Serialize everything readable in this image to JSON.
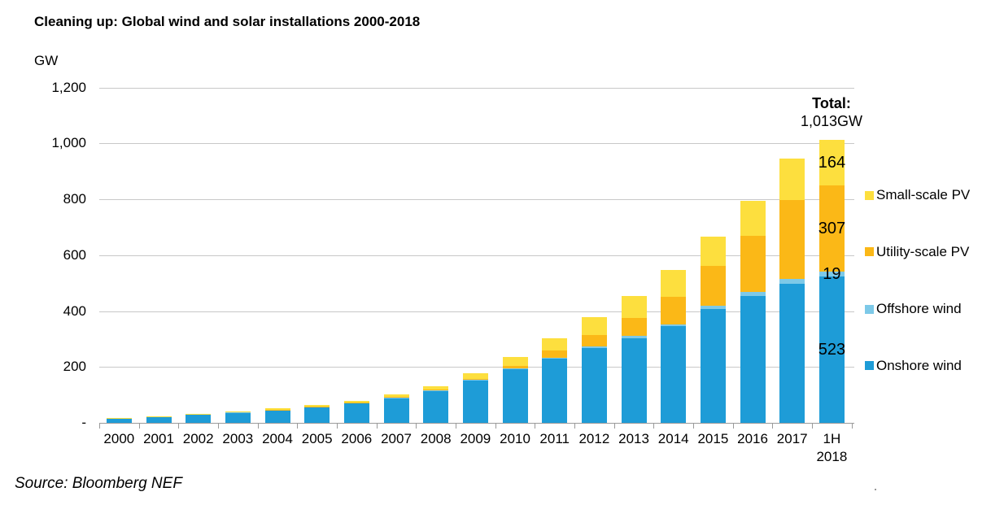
{
  "title": "Cleaning up: Global wind and solar installations 2000-2018",
  "y_axis_title": "GW",
  "source": "Source: Bloomberg NEF",
  "total_annotation": {
    "label": "Total:",
    "value": "1,013GW"
  },
  "legend": [
    {
      "label": "Small-scale PV",
      "color": "#FDDF3E"
    },
    {
      "label": "Utility-scale PV",
      "color": "#FBB817"
    },
    {
      "label": "Offshore wind",
      "color": "#7DC9E8"
    },
    {
      "label": "Onshore wind",
      "color": "#1E9CD7"
    }
  ],
  "colors": {
    "onshore_wind": "#1E9CD7",
    "offshore_wind": "#7DC9E8",
    "utility_scale_pv": "#FBB817",
    "small_scale_pv": "#FDDF3E",
    "gridline": "#c8c8c8",
    "axis": "#9a9a9a"
  },
  "chart_data": {
    "type": "bar",
    "stacked": true,
    "title": "Cleaning up: Global wind and solar installations 2000-2018",
    "ylabel": "GW",
    "ylim": [
      0,
      1200
    ],
    "grid": true,
    "legend_position": "right",
    "categories": [
      "2000",
      "2001",
      "2002",
      "2003",
      "2004",
      "2005",
      "2006",
      "2007",
      "2008",
      "2009",
      "2010",
      "2011",
      "2012",
      "2013",
      "2014",
      "2015",
      "2016",
      "2017",
      "1H\n2018"
    ],
    "yticks": [
      {
        "value": 1200,
        "label": "1,200"
      },
      {
        "value": 1000,
        "label": "1,000"
      },
      {
        "value": 800,
        "label": "800"
      },
      {
        "value": 600,
        "label": "600"
      },
      {
        "value": 400,
        "label": "400"
      },
      {
        "value": 200,
        "label": "200"
      },
      {
        "value": 0,
        "label": "-"
      }
    ],
    "series": [
      {
        "name": "Onshore wind",
        "color": "#1E9CD7",
        "values": [
          16,
          23,
          30,
          38,
          46,
          57,
          72,
          90,
          114,
          151,
          191,
          229,
          268,
          304,
          345,
          407,
          453,
          497,
          523
        ]
      },
      {
        "name": "Offshore wind",
        "color": "#7DC9E8",
        "values": [
          0,
          0,
          0,
          1,
          1,
          1,
          1,
          1,
          1,
          2,
          3,
          4,
          5,
          7,
          8,
          12,
          14,
          18,
          19
        ]
      },
      {
        "name": "Utility-scale PV",
        "color": "#FBB817",
        "values": [
          0,
          0,
          0,
          0,
          1,
          1,
          1,
          2,
          3,
          5,
          10,
          25,
          42,
          63,
          97,
          143,
          203,
          283,
          307
        ]
      },
      {
        "name": "Small-scale PV",
        "color": "#FDDF3E",
        "values": [
          1,
          1,
          2,
          2,
          3,
          4,
          5,
          8,
          13,
          19,
          31,
          46,
          62,
          79,
          96,
          103,
          123,
          148,
          164
        ]
      }
    ],
    "data_labels_last_category": {
      "category": "1H 2018",
      "labels": {
        "Small-scale PV": "164",
        "Utility-scale PV": "307",
        "Offshore wind": "19",
        "Onshore wind": "523"
      },
      "total": "1,013GW"
    }
  }
}
